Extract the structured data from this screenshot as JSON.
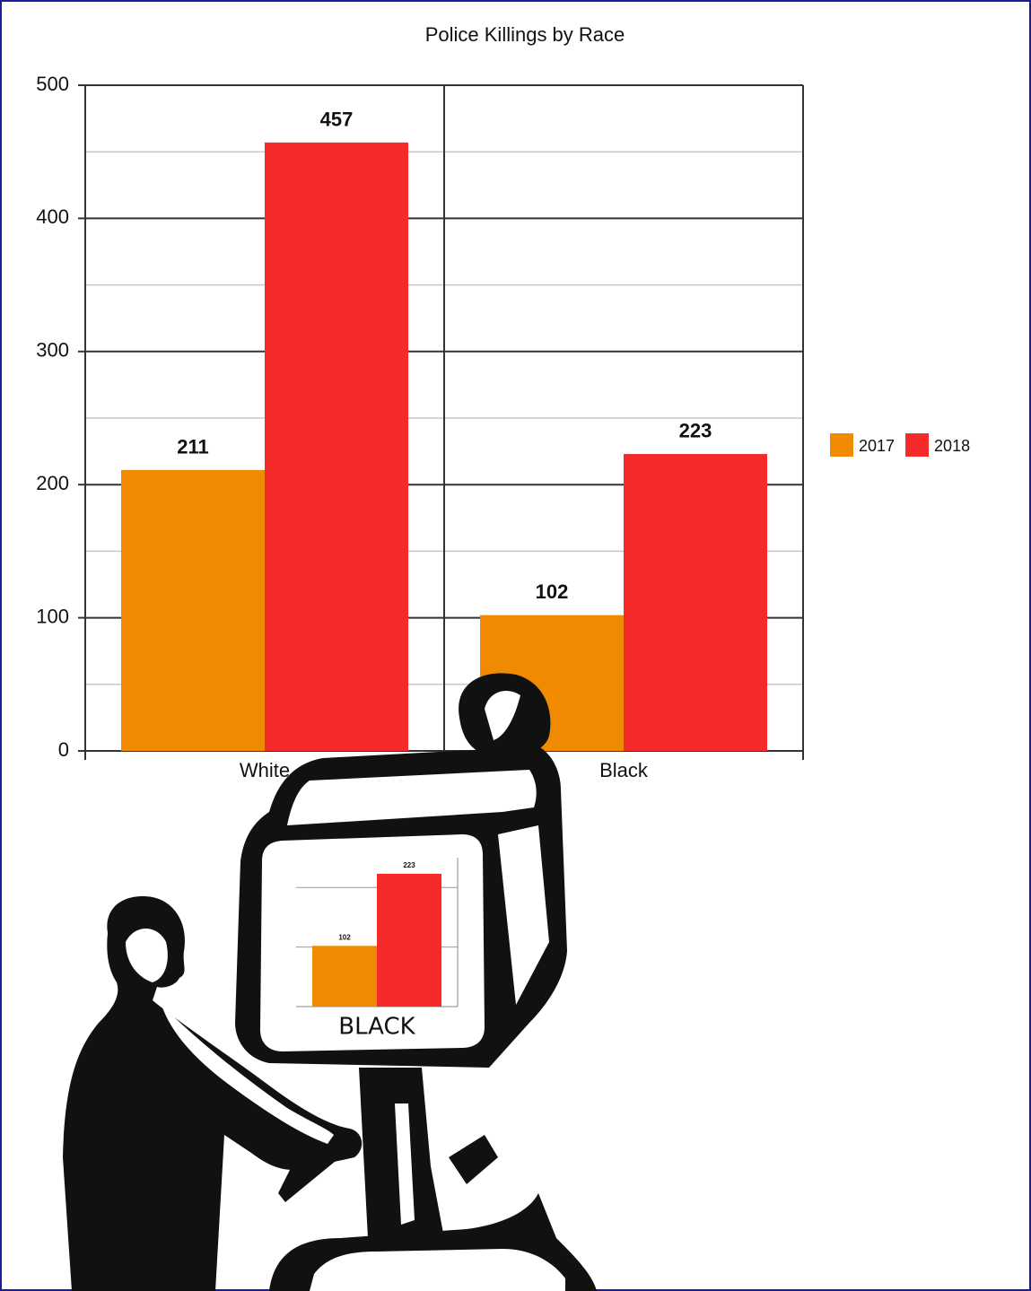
{
  "chart_data": [
    {
      "type": "bar",
      "title": "Police Killings by Race",
      "categories": [
        "White",
        "Black"
      ],
      "series": [
        {
          "name": "2017",
          "color": "#f08a00",
          "values": [
            211,
            102
          ]
        },
        {
          "name": "2018",
          "color": "#f52a2a",
          "values": [
            457,
            223
          ]
        }
      ],
      "ylim": [
        0,
        500
      ],
      "yticks": [
        0,
        100,
        200,
        300,
        400,
        500
      ],
      "grid": true,
      "legend": "right"
    },
    {
      "type": "bar",
      "categories": [
        "BLACK"
      ],
      "series": [
        {
          "color": "#f08a00",
          "values": [
            102
          ]
        },
        {
          "color": "#f52a2a",
          "values": [
            223
          ]
        }
      ],
      "ylim": [
        0,
        250
      ],
      "yticks": [
        100,
        200
      ],
      "grid": true
    }
  ]
}
